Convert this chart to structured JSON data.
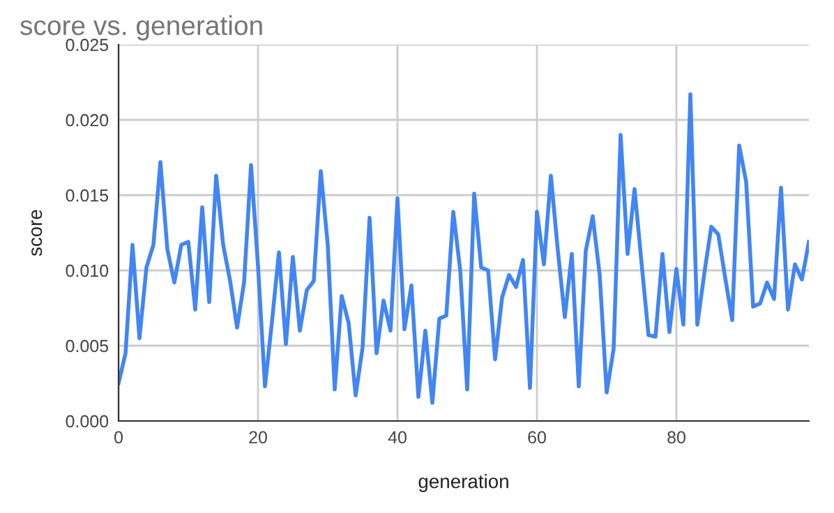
{
  "chart_data": {
    "type": "line",
    "title": "score vs. generation",
    "xlabel": "generation",
    "ylabel": "score",
    "x": [
      0,
      1,
      2,
      3,
      4,
      5,
      6,
      7,
      8,
      9,
      10,
      11,
      12,
      13,
      14,
      15,
      16,
      17,
      18,
      19,
      20,
      21,
      22,
      23,
      24,
      25,
      26,
      27,
      28,
      29,
      30,
      31,
      32,
      33,
      34,
      35,
      36,
      37,
      38,
      39,
      40,
      41,
      42,
      43,
      44,
      45,
      46,
      47,
      48,
      49,
      50,
      51,
      52,
      53,
      54,
      55,
      56,
      57,
      58,
      59,
      60,
      61,
      62,
      63,
      64,
      65,
      66,
      67,
      68,
      69,
      70,
      71,
      72,
      73,
      74,
      75,
      76,
      77,
      78,
      79,
      80,
      81,
      82,
      83,
      84,
      85,
      86,
      87,
      88,
      89,
      90,
      91,
      92,
      93,
      94,
      95,
      96,
      97,
      98,
      99
    ],
    "series": [
      {
        "color": "#4285f4",
        "values": [
          0.0025,
          0.0045,
          0.0117,
          0.0055,
          0.0102,
          0.0117,
          0.0172,
          0.0114,
          0.0092,
          0.0117,
          0.0119,
          0.0074,
          0.0142,
          0.0079,
          0.0163,
          0.0117,
          0.0093,
          0.0062,
          0.0092,
          0.017,
          0.0103,
          0.0023,
          0.0066,
          0.0112,
          0.0051,
          0.0109,
          0.006,
          0.0087,
          0.0093,
          0.0166,
          0.0117,
          0.0021,
          0.0083,
          0.0065,
          0.0017,
          0.0049,
          0.0135,
          0.0045,
          0.008,
          0.006,
          0.0148,
          0.0061,
          0.009,
          0.0016,
          0.006,
          0.0012,
          0.0068,
          0.007,
          0.0139,
          0.01,
          0.0021,
          0.0151,
          0.0102,
          0.01,
          0.0041,
          0.0082,
          0.0097,
          0.0089,
          0.0107,
          0.0022,
          0.0139,
          0.0104,
          0.0163,
          0.0113,
          0.0069,
          0.0111,
          0.0023,
          0.0113,
          0.0136,
          0.0097,
          0.0019,
          0.0048,
          0.019,
          0.0111,
          0.0154,
          0.0105,
          0.0057,
          0.0056,
          0.0111,
          0.0059,
          0.0101,
          0.0064,
          0.0217,
          0.0064,
          0.0098,
          0.0129,
          0.0124,
          0.0095,
          0.0067,
          0.0183,
          0.0159,
          0.0076,
          0.0078,
          0.0092,
          0.0081,
          0.0155,
          0.0074,
          0.0104,
          0.0094,
          0.0119
        ]
      }
    ],
    "xlim": [
      0,
      99
    ],
    "xticks": [
      0,
      20,
      40,
      60,
      80
    ],
    "ylim": [
      0,
      0.025
    ],
    "yticks": [
      {
        "value": 0,
        "label": "0.000"
      },
      {
        "value": 0.005,
        "label": "0.005"
      },
      {
        "value": 0.01,
        "label": "0.010"
      },
      {
        "value": 0.015,
        "label": "0.015"
      },
      {
        "value": 0.02,
        "label": "0.020"
      },
      {
        "value": 0.025,
        "label": "0.025"
      }
    ],
    "grid": true,
    "marker": "none",
    "line_style": "solid",
    "legend": false
  }
}
